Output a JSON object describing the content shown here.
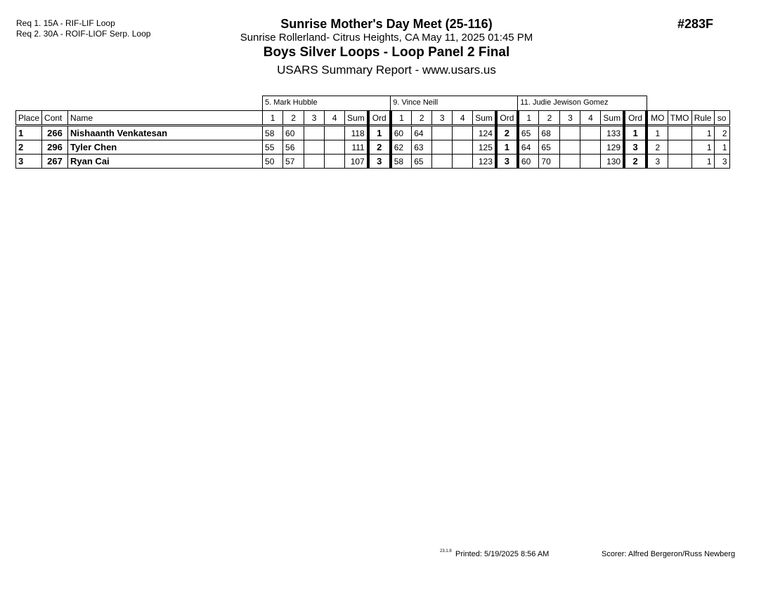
{
  "requirements": [
    "Req  1.  15A - RIF-LIF Loop",
    "Req  2.  30A - ROIF-LIOF Serp. Loop"
  ],
  "meet_title": "Sunrise Mother's Day Meet (25-116)",
  "location_line": "Sunrise Rollerland- Citrus Heights, CA  May 11, 2025  01:45 PM",
  "event_title": "Boys Silver Loops - Loop Panel 2 Final",
  "report_title": "USARS Summary Report - www.usars.us",
  "event_number": "#283F",
  "judges": [
    "5.  Mark Hubble",
    "9.  Vince Neill",
    "11.  Judie Jewison Gomez"
  ],
  "columns": {
    "place": "Place",
    "cont": "Cont",
    "name": "Name",
    "j": [
      "1",
      "2",
      "3",
      "4",
      "Sum",
      "Ord"
    ],
    "mo": "MO",
    "tmo": "TMO",
    "rule": "Rule",
    "so": "so"
  },
  "rows": [
    {
      "place": "1",
      "cont": "266",
      "name": "Nishaanth Venkatesan",
      "scores": [
        [
          "58",
          "60",
          "",
          "",
          "118",
          "1"
        ],
        [
          "60",
          "64",
          "",
          "",
          "124",
          "2"
        ],
        [
          "65",
          "68",
          "",
          "",
          "133",
          "1"
        ]
      ],
      "mo": "1",
      "tmo": "",
      "rule": "1",
      "so": "2"
    },
    {
      "place": "2",
      "cont": "296",
      "name": "Tyler Chen",
      "scores": [
        [
          "55",
          "56",
          "",
          "",
          "111",
          "2"
        ],
        [
          "62",
          "63",
          "",
          "",
          "125",
          "1"
        ],
        [
          "64",
          "65",
          "",
          "",
          "129",
          "3"
        ]
      ],
      "mo": "2",
      "tmo": "",
      "rule": "1",
      "so": "1"
    },
    {
      "place": "3",
      "cont": "267",
      "name": "Ryan Cai",
      "scores": [
        [
          "50",
          "57",
          "",
          "",
          "107",
          "3"
        ],
        [
          "58",
          "65",
          "",
          "",
          "123",
          "3"
        ],
        [
          "60",
          "70",
          "",
          "",
          "130",
          "2"
        ]
      ],
      "mo": "3",
      "tmo": "",
      "rule": "1",
      "so": "3"
    }
  ],
  "footer": {
    "version": "23.1.8",
    "printed": "Printed:  5/19/2025  8:56 AM",
    "scorer": "Scorer:   Alfred Bergeron/Russ Newberg"
  }
}
